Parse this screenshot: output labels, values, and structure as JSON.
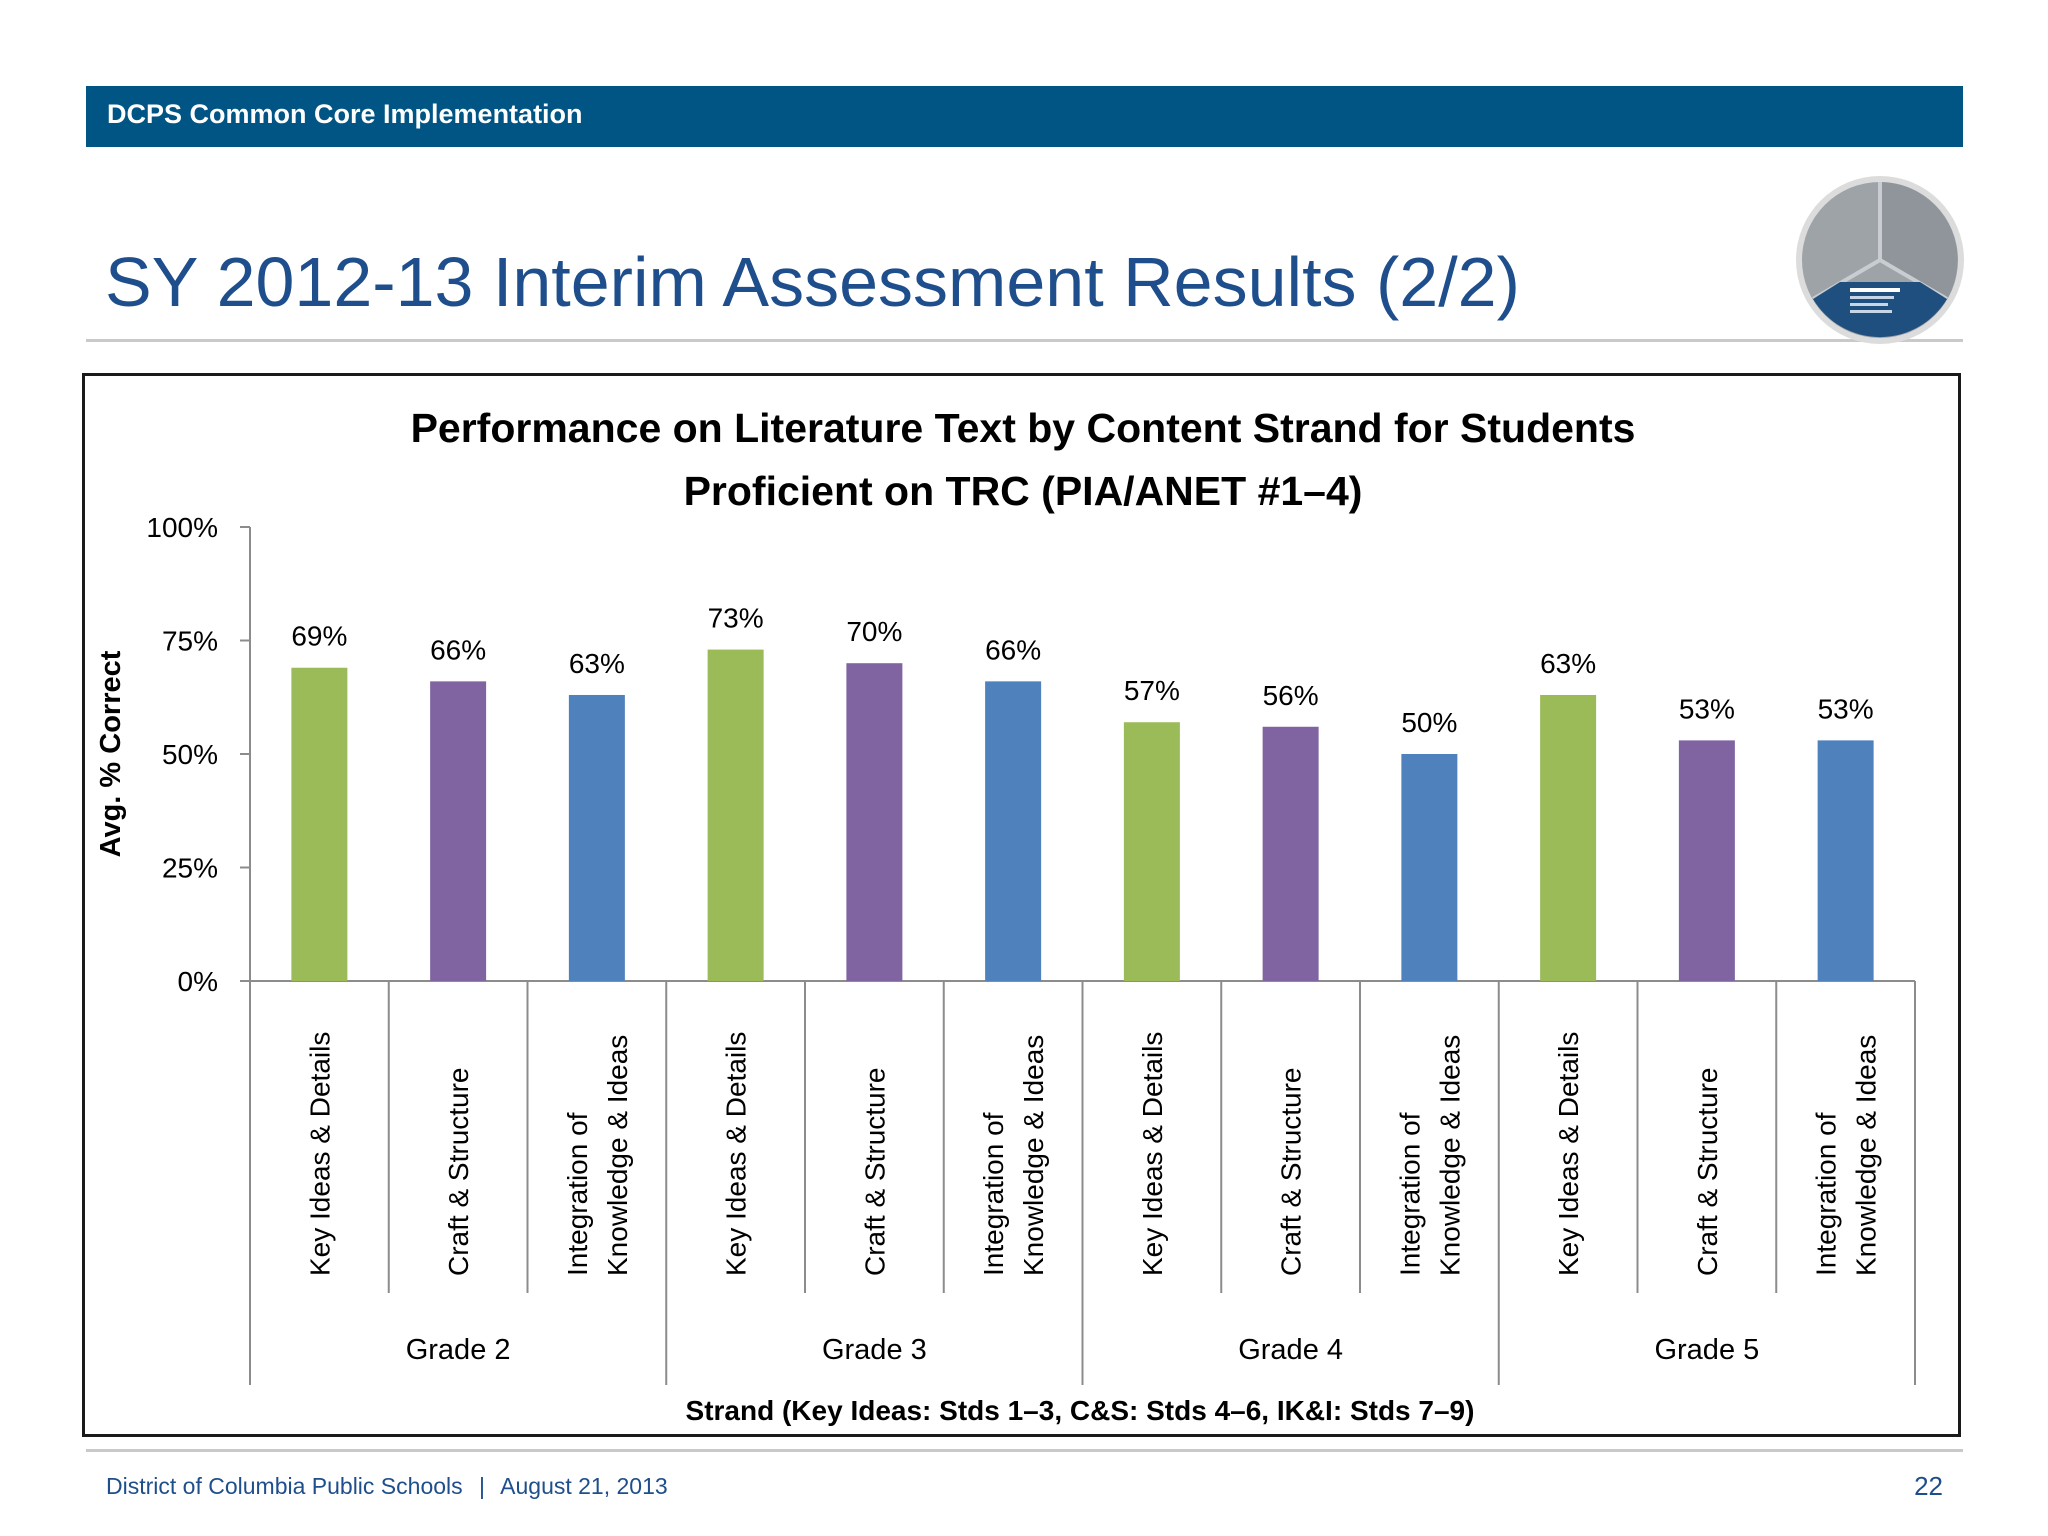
{
  "header": {
    "label": "DCPS Common Core Implementation"
  },
  "slide": {
    "title": "SY 2012-13 Interim Assessment Results (2/2)"
  },
  "footer": {
    "org": "District of Columbia Public Schools",
    "separator": "|",
    "date": "August 21, 2013",
    "page": "22"
  },
  "colors": {
    "header_bg": "#005584",
    "title": "#1f4e8c",
    "key_ideas": "#9bbb59",
    "craft": "#8064a2",
    "integration": "#4f81bd"
  },
  "chart_data": {
    "type": "bar",
    "title_lines": [
      "Performance on Literature Text by Content Strand for Students",
      "Proficient on TRC (PIA/ANET #1–4)"
    ],
    "ylabel": "Avg. % Correct",
    "xlabel": "Strand (Key Ideas: Stds 1–3, C&S:  Stds 4–6, IK&I: Stds 7–9)",
    "ylim": [
      0,
      100
    ],
    "yticks": [
      "0%",
      "25%",
      "50%",
      "75%",
      "100%"
    ],
    "groups": [
      "Grade 2",
      "Grade 3",
      "Grade 4",
      "Grade 5"
    ],
    "strands": [
      {
        "lines": [
          "Key Ideas & Details"
        ],
        "color": "#9bbb59"
      },
      {
        "lines": [
          "Craft & Structure"
        ],
        "color": "#8064a2"
      },
      {
        "lines": [
          "Integration of",
          "Knowledge & Ideas"
        ],
        "color": "#4f81bd"
      }
    ],
    "values": [
      69,
      66,
      63,
      73,
      70,
      66,
      57,
      56,
      50,
      63,
      53,
      53
    ],
    "value_labels": [
      "69%",
      "66%",
      "63%",
      "73%",
      "70%",
      "66%",
      "57%",
      "56%",
      "50%",
      "63%",
      "53%",
      "53%"
    ],
    "grid": false,
    "legend": "none"
  }
}
